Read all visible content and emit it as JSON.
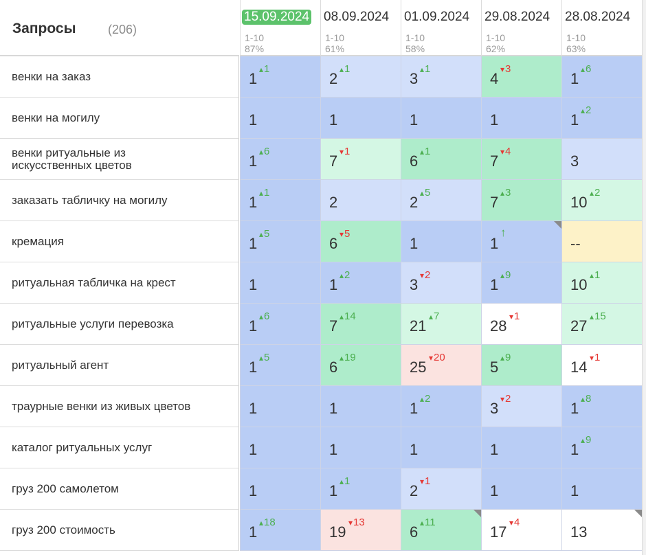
{
  "header": {
    "title": "Запросы",
    "count": "(206)"
  },
  "dates": [
    {
      "date": "15.09.2024",
      "range": "1-10",
      "pct": "87%",
      "active": true
    },
    {
      "date": "08.09.2024",
      "range": "1-10",
      "pct": "61%",
      "active": false
    },
    {
      "date": "01.09.2024",
      "range": "1-10",
      "pct": "58%",
      "active": false
    },
    {
      "date": "29.08.2024",
      "range": "1-10",
      "pct": "62%",
      "active": false
    },
    {
      "date": "28.08.2024",
      "range": "1-10",
      "pct": "63%",
      "active": false
    }
  ],
  "colors": {
    "top1": "#b9cdf5",
    "top3": "#d2dffa",
    "top5": "#aeeccb",
    "top10": "#d4f7e4",
    "top20": "#ffffff",
    "worse": "#fbe3e0",
    "none": "#fdf2c8",
    "up": "#4caf50",
    "down": "#e53935",
    "active_date": "#5cc26b"
  },
  "rows": [
    {
      "query": "венки на заказ",
      "cells": [
        {
          "pos": "1",
          "delta": "1",
          "dir": "up",
          "bg": "top1"
        },
        {
          "pos": "2",
          "delta": "1",
          "dir": "up",
          "bg": "top3"
        },
        {
          "pos": "3",
          "delta": "1",
          "dir": "up",
          "bg": "top3"
        },
        {
          "pos": "4",
          "delta": "3",
          "dir": "down",
          "bg": "top5"
        },
        {
          "pos": "1",
          "delta": "6",
          "dir": "up",
          "bg": "top1"
        }
      ]
    },
    {
      "query": "венки на могилу",
      "cells": [
        {
          "pos": "1",
          "bg": "top1"
        },
        {
          "pos": "1",
          "bg": "top1"
        },
        {
          "pos": "1",
          "bg": "top1"
        },
        {
          "pos": "1",
          "bg": "top1"
        },
        {
          "pos": "1",
          "delta": "2",
          "dir": "up",
          "bg": "top1"
        }
      ]
    },
    {
      "query": "венки ритуальные из искусственных цветов",
      "cells": [
        {
          "pos": "1",
          "delta": "6",
          "dir": "up",
          "bg": "top1"
        },
        {
          "pos": "7",
          "delta": "1",
          "dir": "down",
          "bg": "top10"
        },
        {
          "pos": "6",
          "delta": "1",
          "dir": "up",
          "bg": "top5"
        },
        {
          "pos": "7",
          "delta": "4",
          "dir": "down",
          "bg": "top5"
        },
        {
          "pos": "3",
          "bg": "top3"
        }
      ]
    },
    {
      "query": "заказать табличку на могилу",
      "cells": [
        {
          "pos": "1",
          "delta": "1",
          "dir": "up",
          "bg": "top1"
        },
        {
          "pos": "2",
          "bg": "top3"
        },
        {
          "pos": "2",
          "delta": "5",
          "dir": "up",
          "bg": "top3"
        },
        {
          "pos": "7",
          "delta": "3",
          "dir": "up",
          "bg": "top5"
        },
        {
          "pos": "10",
          "delta": "2",
          "dir": "up",
          "bg": "top10"
        }
      ]
    },
    {
      "query": "кремация",
      "cells": [
        {
          "pos": "1",
          "delta": "5",
          "dir": "up",
          "bg": "top1"
        },
        {
          "pos": "6",
          "delta": "5",
          "dir": "down",
          "bg": "top5"
        },
        {
          "pos": "1",
          "bg": "top1"
        },
        {
          "pos": "1",
          "delta": "↑",
          "dir": "new",
          "bg": "top1",
          "marker": true
        },
        {
          "pos": "--",
          "bg": "none"
        }
      ]
    },
    {
      "query": "ритуальная табличка на крест",
      "cells": [
        {
          "pos": "1",
          "bg": "top1"
        },
        {
          "pos": "1",
          "delta": "2",
          "dir": "up",
          "bg": "top1"
        },
        {
          "pos": "3",
          "delta": "2",
          "dir": "down",
          "bg": "top3"
        },
        {
          "pos": "1",
          "delta": "9",
          "dir": "up",
          "bg": "top1"
        },
        {
          "pos": "10",
          "delta": "1",
          "dir": "up",
          "bg": "top10"
        }
      ]
    },
    {
      "query": "ритуальные услуги перевозка",
      "cells": [
        {
          "pos": "1",
          "delta": "6",
          "dir": "up",
          "bg": "top1"
        },
        {
          "pos": "7",
          "delta": "14",
          "dir": "up",
          "bg": "top5"
        },
        {
          "pos": "21",
          "delta": "7",
          "dir": "up",
          "bg": "top10"
        },
        {
          "pos": "28",
          "delta": "1",
          "dir": "down",
          "bg": "top20"
        },
        {
          "pos": "27",
          "delta": "15",
          "dir": "up",
          "bg": "top10"
        }
      ]
    },
    {
      "query": "ритуальный агент",
      "cells": [
        {
          "pos": "1",
          "delta": "5",
          "dir": "up",
          "bg": "top1"
        },
        {
          "pos": "6",
          "delta": "19",
          "dir": "up",
          "bg": "top5"
        },
        {
          "pos": "25",
          "delta": "20",
          "dir": "down",
          "bg": "worse"
        },
        {
          "pos": "5",
          "delta": "9",
          "dir": "up",
          "bg": "top5"
        },
        {
          "pos": "14",
          "delta": "1",
          "dir": "down",
          "bg": "top20"
        }
      ]
    },
    {
      "query": "траурные венки из живых цветов",
      "cells": [
        {
          "pos": "1",
          "bg": "top1"
        },
        {
          "pos": "1",
          "bg": "top1"
        },
        {
          "pos": "1",
          "delta": "2",
          "dir": "up",
          "bg": "top1"
        },
        {
          "pos": "3",
          "delta": "2",
          "dir": "down",
          "bg": "top3"
        },
        {
          "pos": "1",
          "delta": "8",
          "dir": "up",
          "bg": "top1"
        }
      ]
    },
    {
      "query": "каталог ритуальных услуг",
      "cells": [
        {
          "pos": "1",
          "bg": "top1"
        },
        {
          "pos": "1",
          "bg": "top1"
        },
        {
          "pos": "1",
          "bg": "top1"
        },
        {
          "pos": "1",
          "bg": "top1"
        },
        {
          "pos": "1",
          "delta": "9",
          "dir": "up",
          "bg": "top1"
        }
      ]
    },
    {
      "query": "груз 200 самолетом",
      "cells": [
        {
          "pos": "1",
          "bg": "top1"
        },
        {
          "pos": "1",
          "delta": "1",
          "dir": "up",
          "bg": "top1"
        },
        {
          "pos": "2",
          "delta": "1",
          "dir": "down",
          "bg": "top3"
        },
        {
          "pos": "1",
          "bg": "top1"
        },
        {
          "pos": "1",
          "bg": "top1"
        }
      ]
    },
    {
      "query": "груз 200 стоимость",
      "cells": [
        {
          "pos": "1",
          "delta": "18",
          "dir": "up",
          "bg": "top1"
        },
        {
          "pos": "19",
          "delta": "13",
          "dir": "down",
          "bg": "worse"
        },
        {
          "pos": "6",
          "delta": "11",
          "dir": "up",
          "bg": "top5",
          "marker": true
        },
        {
          "pos": "17",
          "delta": "4",
          "dir": "down",
          "bg": "top20"
        },
        {
          "pos": "13",
          "bg": "top20",
          "marker": true
        }
      ]
    }
  ]
}
